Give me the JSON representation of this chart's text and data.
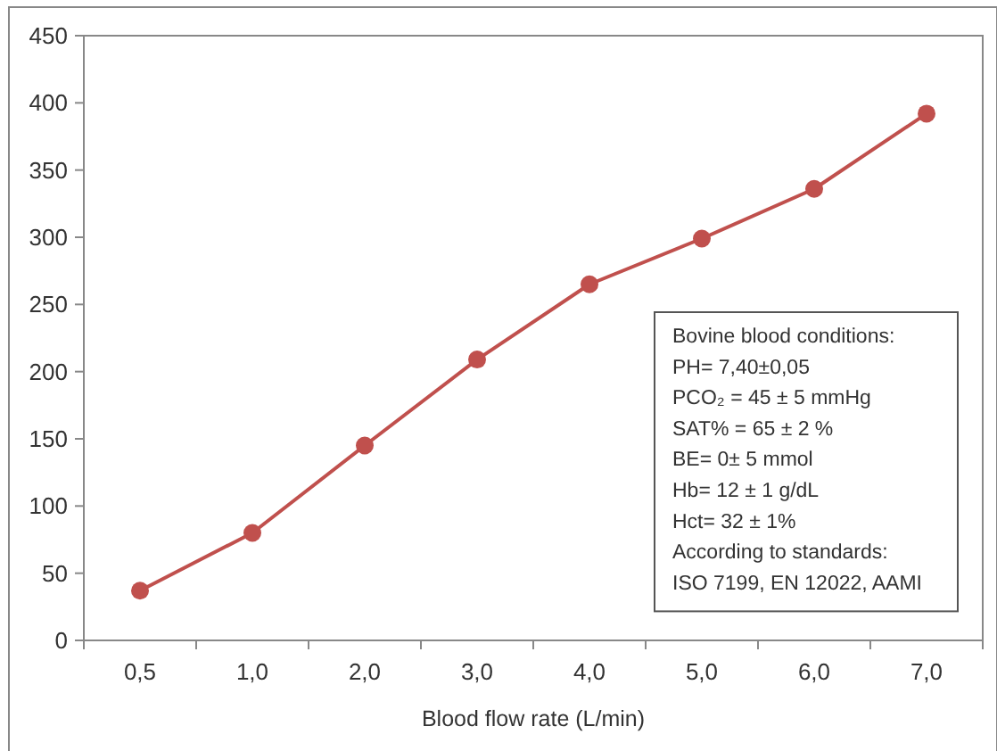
{
  "chart_data": {
    "type": "line",
    "xlabel": "Blood flow rate (L/min)",
    "categories": [
      "0,5",
      "1,0",
      "2,0",
      "3,0",
      "4,0",
      "5,0",
      "6,0",
      "7,0"
    ],
    "series": [
      {
        "color": "#c0504d",
        "values": [
          37,
          80,
          145,
          209,
          265,
          299,
          336,
          392
        ]
      }
    ],
    "ylim": [
      0,
      450
    ],
    "yticks": [
      0,
      50,
      100,
      150,
      200,
      250,
      300,
      350,
      400,
      450
    ],
    "marker": "circle",
    "line_style": "solid",
    "annotations": [
      "Bovine blood conditions:",
      "PH= 7,40±0,05",
      "PCO₂ = 45 ± 5 mmHg",
      "SAT% = 65 ± 2 %",
      "BE= 0± 5 mmol",
      "Hb= 12 ± 1 g/dL",
      "Hct= 32 ± 1%",
      "According to standards:",
      "ISO 7199, EN 12022, AAMI"
    ]
  }
}
